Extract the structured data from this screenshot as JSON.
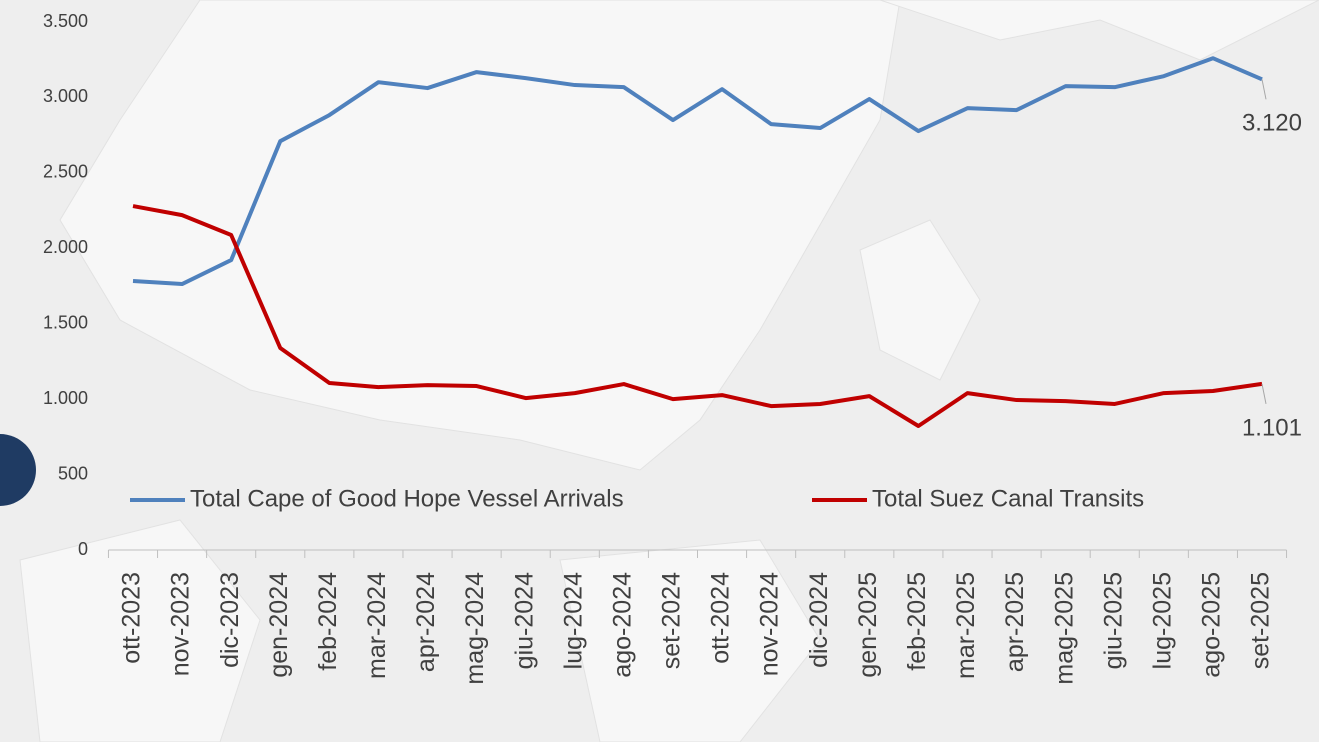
{
  "chart_data": {
    "type": "line",
    "categories": [
      "ott-2023",
      "nov-2023",
      "dic-2023",
      "gen-2024",
      "feb-2024",
      "mar-2024",
      "apr-2024",
      "mag-2024",
      "giu-2024",
      "lug-2024",
      "ago-2024",
      "set-2024",
      "ott-2024",
      "nov-2024",
      "dic-2024",
      "gen-2025",
      "feb-2025",
      "mar-2025",
      "apr-2025",
      "mag-2025",
      "giu-2025",
      "lug-2025",
      "ago-2025",
      "set-2025"
    ],
    "series": [
      {
        "name": "Total Cape of Good Hope Vessel Arrivals",
        "color": "#4f81bd",
        "values": [
          1783,
          1763,
          1922,
          2710,
          2883,
          3101,
          3062,
          3168,
          3128,
          3082,
          3068,
          2850,
          3055,
          2823,
          2797,
          2989,
          2777,
          2929,
          2916,
          3075,
          3068,
          3141,
          3260,
          3120
        ],
        "value_labels": [
          null,
          null,
          null,
          null,
          null,
          null,
          null,
          null,
          null,
          null,
          null,
          null,
          null,
          null,
          null,
          null,
          null,
          null,
          null,
          null,
          null,
          null,
          null,
          "3.120"
        ]
      },
      {
        "name": "Total Suez Canal Transits",
        "color": "#c00000",
        "values": [
          2280,
          2220,
          2088,
          1339,
          1107,
          1080,
          1093,
          1087,
          1007,
          1040,
          1100,
          1000,
          1027,
          954,
          968,
          1020,
          822,
          1040,
          994,
          987,
          968,
          1040,
          1054,
          1101
        ],
        "value_labels": [
          null,
          null,
          null,
          null,
          null,
          null,
          null,
          null,
          null,
          null,
          null,
          null,
          null,
          null,
          null,
          null,
          null,
          null,
          null,
          null,
          null,
          null,
          null,
          "1.101"
        ]
      }
    ],
    "ylim": [
      0,
      3500
    ],
    "yticks": [
      0,
      500,
      {
        "value": 1000,
        "label": "1.000"
      },
      {
        "value": 1500,
        "label": "1.500"
      },
      {
        "value": 2000,
        "label": "2.000"
      },
      {
        "value": 2500,
        "label": "2.500"
      },
      {
        "value": 3000,
        "label": "3.000"
      },
      {
        "value": 3500,
        "label": "3.500"
      }
    ],
    "legend": "bottom"
  }
}
